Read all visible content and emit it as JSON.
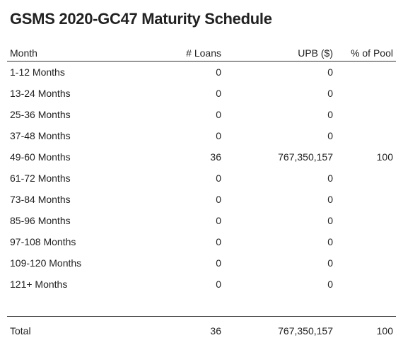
{
  "title": "GSMS 2020-GC47 Maturity Schedule",
  "columns": [
    "Month",
    "# Loans",
    "UPB ($)",
    "% of Pool"
  ],
  "rows": [
    {
      "month": "1-12 Months",
      "loans": "0",
      "upb": "0",
      "pct": ""
    },
    {
      "month": "13-24 Months",
      "loans": "0",
      "upb": "0",
      "pct": ""
    },
    {
      "month": "25-36 Months",
      "loans": "0",
      "upb": "0",
      "pct": ""
    },
    {
      "month": "37-48 Months",
      "loans": "0",
      "upb": "0",
      "pct": ""
    },
    {
      "month": "49-60 Months",
      "loans": "36",
      "upb": "767,350,157",
      "pct": "100"
    },
    {
      "month": "61-72 Months",
      "loans": "0",
      "upb": "0",
      "pct": ""
    },
    {
      "month": "73-84 Months",
      "loans": "0",
      "upb": "0",
      "pct": ""
    },
    {
      "month": "85-96 Months",
      "loans": "0",
      "upb": "0",
      "pct": ""
    },
    {
      "month": "97-108 Months",
      "loans": "0",
      "upb": "0",
      "pct": ""
    },
    {
      "month": "109-120 Months",
      "loans": "0",
      "upb": "0",
      "pct": ""
    },
    {
      "month": "121+ Months",
      "loans": "0",
      "upb": "0",
      "pct": ""
    }
  ],
  "total": {
    "label": "Total",
    "loans": "36",
    "upb": "767,350,157",
    "pct": "100"
  }
}
